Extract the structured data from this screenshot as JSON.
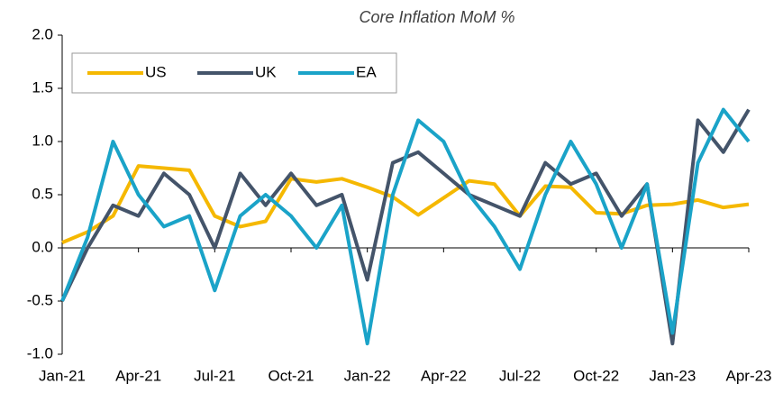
{
  "chart_data": {
    "type": "line",
    "title": "Core Inflation MoM %",
    "categories": [
      "Jan-21",
      null,
      null,
      "Apr-21",
      null,
      null,
      "Jul-21",
      null,
      null,
      "Oct-21",
      null,
      null,
      "Jan-22",
      null,
      null,
      "Apr-22",
      null,
      null,
      "Jul-22",
      null,
      null,
      "Oct-22",
      null,
      null,
      "Jan-23",
      null,
      null,
      "Apr-23"
    ],
    "series": [
      {
        "name": "US",
        "color": "#f5b800",
        "values": [
          0.05,
          0.15,
          0.3,
          0.77,
          0.75,
          0.73,
          0.3,
          0.2,
          0.25,
          0.65,
          0.62,
          0.65,
          0.57,
          0.48,
          0.31,
          0.47,
          0.63,
          0.6,
          0.3,
          0.58,
          0.57,
          0.33,
          0.32,
          0.4,
          0.41,
          0.45,
          0.38,
          0.41
        ]
      },
      {
        "name": "UK",
        "color": "#44546a",
        "values": [
          -0.5,
          0.0,
          0.4,
          0.3,
          0.7,
          0.5,
          0.0,
          0.7,
          0.4,
          0.7,
          0.4,
          0.5,
          -0.3,
          0.8,
          0.9,
          0.7,
          0.5,
          0.4,
          0.3,
          0.8,
          0.6,
          0.7,
          0.3,
          0.6,
          -0.9,
          1.2,
          0.9,
          1.3
        ]
      },
      {
        "name": "EA",
        "color": "#1aa3c8",
        "values": [
          -0.5,
          0.1,
          1.0,
          0.5,
          0.2,
          0.3,
          -0.4,
          0.3,
          0.5,
          0.3,
          0.0,
          0.4,
          -0.9,
          0.5,
          1.2,
          1.0,
          0.5,
          0.2,
          -0.2,
          0.5,
          1.0,
          0.6,
          0.0,
          0.6,
          -0.8,
          0.8,
          1.3,
          1.0
        ]
      }
    ],
    "ylim": [
      -1,
      2
    ],
    "yticks": [
      {
        "value": -1,
        "label": "-1.0"
      },
      -0.5,
      {
        "value": 0,
        "label": "0.0"
      },
      0.5,
      {
        "value": 1,
        "label": "1.0"
      },
      1.5,
      {
        "value": 2,
        "label": "2.0"
      }
    ],
    "legend": "top-left"
  }
}
